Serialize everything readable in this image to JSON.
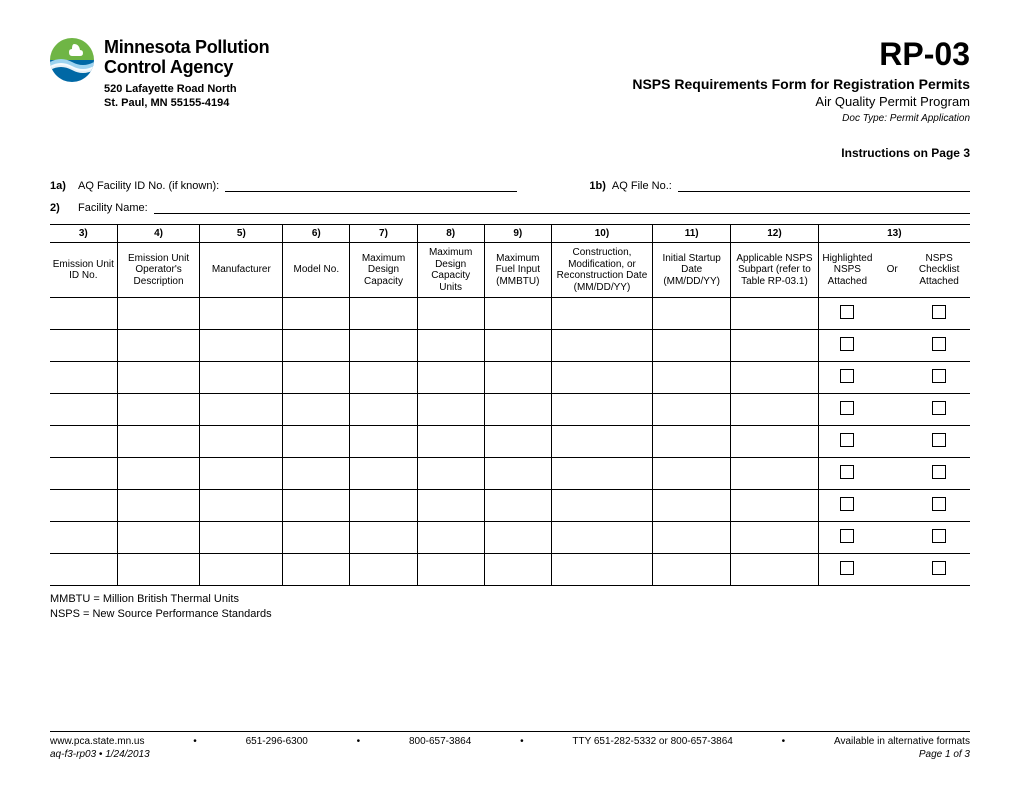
{
  "agency": {
    "name_line1": "Minnesota Pollution",
    "name_line2": "Control Agency",
    "address_line1": "520 Lafayette Road North",
    "address_line2": "St. Paul, MN 55155-4194"
  },
  "title": {
    "form_code": "RP-03",
    "form_title": "NSPS Requirements Form for Registration Permits",
    "program": "Air Quality Permit Program",
    "doc_type": "Doc Type:  Permit Application"
  },
  "instructions": "Instructions on Page 3",
  "fields": {
    "f1a_num": "1a)",
    "f1a_label": "AQ Facility ID No. (if known):",
    "f1b_num": "1b)",
    "f1b_label": "AQ File No.:",
    "f2_num": "2)",
    "f2_label": "Facility Name:"
  },
  "table": {
    "col_widths_pct": [
      7.3,
      9.0,
      9.0,
      7.3,
      7.3,
      7.3,
      7.3,
      11.0,
      8.5,
      9.5,
      6.3,
      3.5,
      6.7
    ],
    "number_headers": [
      "3)",
      "4)",
      "5)",
      "6)",
      "7)",
      "8)",
      "9)",
      "10)",
      "11)",
      "12)",
      "13)"
    ],
    "headers": [
      "Emission Unit ID No.",
      "Emission Unit Operator's Description",
      "Manufacturer",
      "Model No.",
      "Maximum Design Capacity",
      "Maximum Design Capacity Units",
      "Maximum Fuel Input (MMBTU)",
      "Construction, Modification, or Reconstruction Date (MM/DD/YY)",
      "Initial Startup Date (MM/DD/YY)",
      "Applicable NSPS Subpart (refer to Table RP-03.1)",
      "Highlighted NSPS Attached",
      "Or",
      "NSPS Checklist Attached"
    ],
    "row_count": 9
  },
  "notes": {
    "line1": "MMBTU = Million British Thermal Units",
    "line2": "NSPS = New Source Performance Standards"
  },
  "footer": {
    "url": "www.pca.state.mn.us",
    "phone1": "651-296-6300",
    "phone2": "800-657-3864",
    "tty": "TTY 651-282-5332 or 800-657-3864",
    "formats": "Available in alternative formats",
    "doc_id": "aq-f3-rp03  •  1/24/2013",
    "page": "Page 1 of 3",
    "separator": "•"
  },
  "colors": {
    "logo_green": "#6fb545",
    "logo_blue": "#0068a5",
    "logo_wave_light": "#9fd4f0",
    "logo_wave_white": "#ffffff"
  }
}
